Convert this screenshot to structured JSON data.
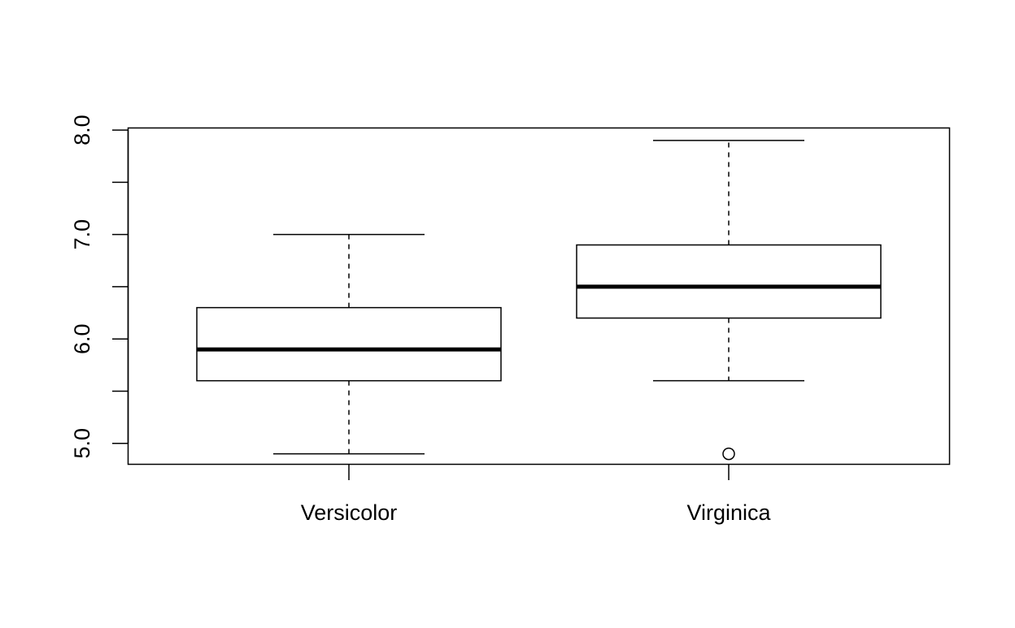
{
  "chart_data": {
    "type": "boxplot",
    "title": "",
    "xlabel": "",
    "ylabel": "",
    "ylim": [
      4.8,
      8.02
    ],
    "y_ticks": [
      5.0,
      5.5,
      6.0,
      6.5,
      7.0,
      7.5,
      8.0
    ],
    "y_tick_labels": [
      "5.0",
      "",
      "6.0",
      "",
      "7.0",
      "",
      "8.0"
    ],
    "grid": false,
    "legend": "none",
    "box_fill": "#ffffff",
    "line_color": "#000000",
    "categories": [
      "Versicolor",
      "Virginica"
    ],
    "boxes": [
      {
        "category": "Versicolor",
        "whisker_low": 4.9,
        "q1": 5.6,
        "median": 5.9,
        "q3": 6.3,
        "whisker_high": 7.0,
        "outliers": []
      },
      {
        "category": "Virginica",
        "whisker_low": 5.6,
        "q1": 6.2,
        "median": 6.5,
        "q3": 6.9,
        "whisker_high": 7.9,
        "outliers": [
          4.9
        ]
      }
    ]
  }
}
